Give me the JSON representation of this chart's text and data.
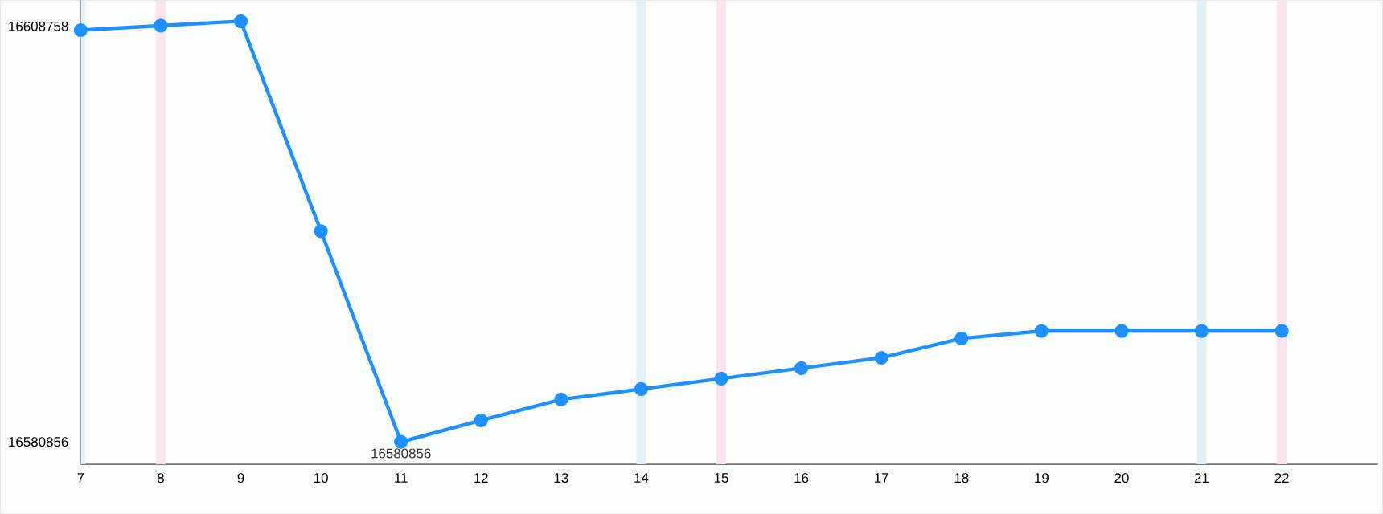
{
  "chart_data": {
    "type": "line",
    "x": [
      7,
      8,
      9,
      10,
      11,
      12,
      13,
      14,
      15,
      16,
      17,
      18,
      19,
      20,
      21,
      22
    ],
    "series": [
      {
        "color": "#1e90ff",
        "values": [
          16608500,
          16608800,
          16609100,
          16595000,
          16580856,
          16582300,
          16583700,
          16584400,
          16585100,
          16585800,
          16586500,
          16587800,
          16588300,
          16588300,
          16588300,
          16588300
        ],
        "value_labels": [
          null,
          null,
          null,
          null,
          "16580856",
          null,
          null,
          null,
          null,
          null,
          null,
          null,
          null,
          null,
          null,
          null
        ]
      }
    ],
    "xlim": [
      7,
      23.2
    ],
    "ylim": [
      16579345,
      16610500
    ],
    "xticks": [
      7,
      8,
      9,
      10,
      11,
      12,
      13,
      14,
      15,
      16,
      17,
      18,
      19,
      20,
      21,
      22
    ],
    "yticks": [
      16580856,
      16608758
    ],
    "marker": "circle",
    "line_style": "solid",
    "grid": false,
    "bands": [
      {
        "axis": "x",
        "from": 7,
        "to": 7.06,
        "color": "#e2f1f5"
      },
      {
        "axis": "x",
        "from": 7.94,
        "to": 8.06,
        "color": "#fce4ef"
      },
      {
        "axis": "x",
        "from": 13.94,
        "to": 14.06,
        "color": "#e2f1f5"
      },
      {
        "axis": "x",
        "from": 14.94,
        "to": 15.06,
        "color": "#fce4ef"
      },
      {
        "axis": "x",
        "from": 20.94,
        "to": 21.06,
        "color": "#e2f1f5"
      },
      {
        "axis": "x",
        "from": 21.94,
        "to": 22.06,
        "color": "#fce4ef"
      }
    ]
  }
}
